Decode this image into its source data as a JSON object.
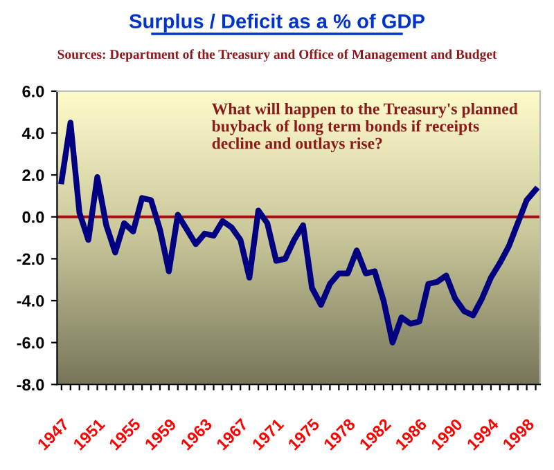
{
  "chart_data": {
    "type": "line",
    "title": "Surplus / Deficit as a % of GDP",
    "subtitle": "Sources: Department of the Treasury and Office of Management and Budget",
    "annotations": [
      "What will happen to the Treasury's planned\nbuyback of long term bonds if receipts\ndecline and outlays rise?"
    ],
    "categories": [
      "1947",
      null,
      null,
      null,
      "1951",
      null,
      null,
      null,
      "1955",
      null,
      null,
      null,
      "1959",
      null,
      null,
      null,
      "1963",
      null,
      null,
      null,
      "1967",
      null,
      null,
      null,
      "1971",
      null,
      null,
      null,
      "1975",
      null,
      null,
      null,
      "1978",
      null,
      null,
      null,
      "1982",
      null,
      null,
      null,
      "1986",
      null,
      null,
      null,
      "1990",
      null,
      null,
      null,
      "1994",
      null,
      null,
      null,
      "1998",
      null
    ],
    "series": [
      {
        "color": "#000080",
        "values": [
          1.7,
          4.5,
          0.2,
          -1.1,
          1.9,
          -0.4,
          -1.7,
          -0.3,
          -0.7,
          0.9,
          0.8,
          -0.6,
          -2.6,
          0.1,
          -0.6,
          -1.3,
          -0.8,
          -0.9,
          -0.2,
          -0.5,
          -1.1,
          -2.9,
          0.3,
          -0.3,
          -2.1,
          -2.0,
          -1.1,
          -0.4,
          -3.4,
          -4.2,
          -3.2,
          -2.7,
          -2.7,
          -1.6,
          -2.7,
          -2.6,
          -4.0,
          -6.0,
          -4.8,
          -5.1,
          -5.0,
          -3.2,
          -3.1,
          -2.8,
          -3.9,
          -4.5,
          -4.7,
          -3.9,
          -2.9,
          -2.2,
          -1.4,
          -0.3,
          0.8,
          1.3
        ]
      }
    ],
    "ylim": [
      -8,
      6
    ],
    "yticks": [
      {
        "value": -8,
        "label": "-8.0"
      },
      {
        "value": -6,
        "label": "-6.0"
      },
      {
        "value": -4,
        "label": "-4.0"
      },
      {
        "value": -2,
        "label": "-2.0"
      },
      {
        "value": 0,
        "label": "0.0"
      },
      {
        "value": 2,
        "label": "2.0"
      },
      {
        "value": 4,
        "label": "4.0"
      },
      {
        "value": 6,
        "label": "6.0"
      }
    ],
    "ref_lines": [
      {
        "axis": "y",
        "value": 0,
        "color": "#a01010"
      }
    ],
    "grid": false,
    "marker": "none",
    "line_style": "solid"
  }
}
